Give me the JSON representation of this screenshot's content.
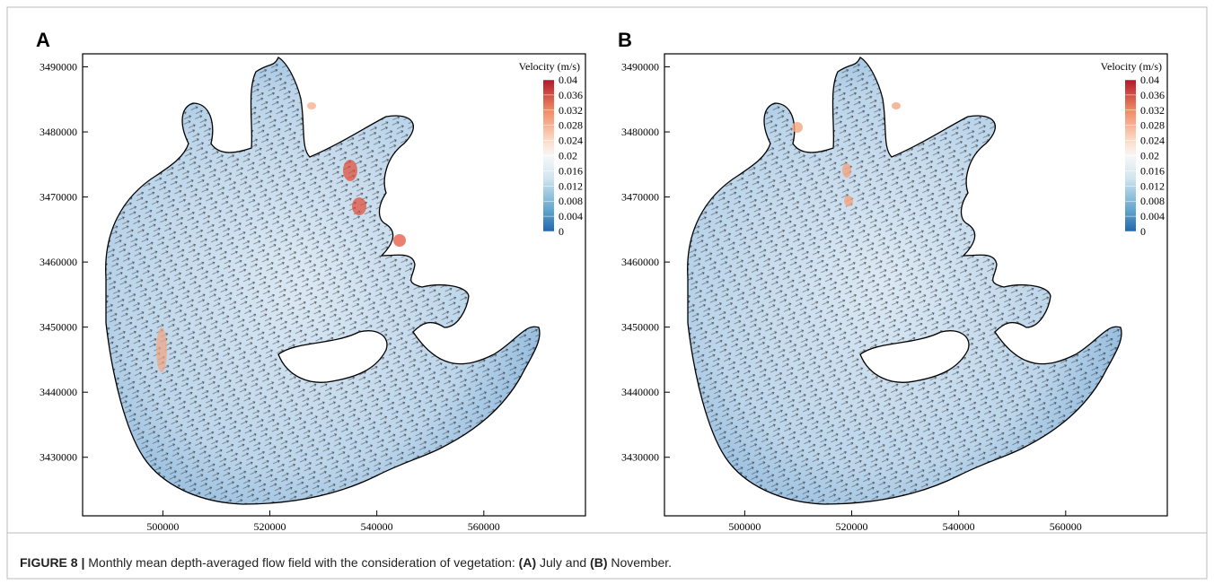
{
  "panels": [
    {
      "label": "A",
      "xlim": [
        485000,
        579000
      ],
      "ylim": [
        3421000,
        3492000
      ],
      "xticks": [
        500000,
        520000,
        540000,
        560000
      ],
      "yticks": [
        3430000,
        3440000,
        3450000,
        3460000,
        3470000,
        3480000,
        3490000
      ],
      "colorbar": {
        "title": "Velocity (m/s)",
        "ticks": [
          0.04,
          0.036,
          0.032,
          0.028,
          0.024,
          0.02,
          0.016,
          0.012,
          0.008,
          0.004,
          0
        ]
      }
    },
    {
      "label": "B",
      "xlim": [
        485000,
        579000
      ],
      "ylim": [
        3421000,
        3492000
      ],
      "xticks": [
        500000,
        520000,
        540000,
        560000
      ],
      "yticks": [
        3430000,
        3440000,
        3450000,
        3460000,
        3470000,
        3480000,
        3490000
      ],
      "colorbar": {
        "title": "Velocity (m/s)",
        "ticks": [
          0.04,
          0.036,
          0.032,
          0.028,
          0.024,
          0.02,
          0.016,
          0.012,
          0.008,
          0.004,
          0
        ]
      }
    }
  ],
  "caption": [
    {
      "text": "FIGURE 8 |",
      "bold": true
    },
    {
      "text": " Monthly mean depth-averaged flow field with the consideration of vegetation: ",
      "bold": false
    },
    {
      "text": "(A)",
      "bold": true
    },
    {
      "text": " July and ",
      "bold": false
    },
    {
      "text": "(B)",
      "bold": true
    },
    {
      "text": " November.",
      "bold": false
    }
  ]
}
